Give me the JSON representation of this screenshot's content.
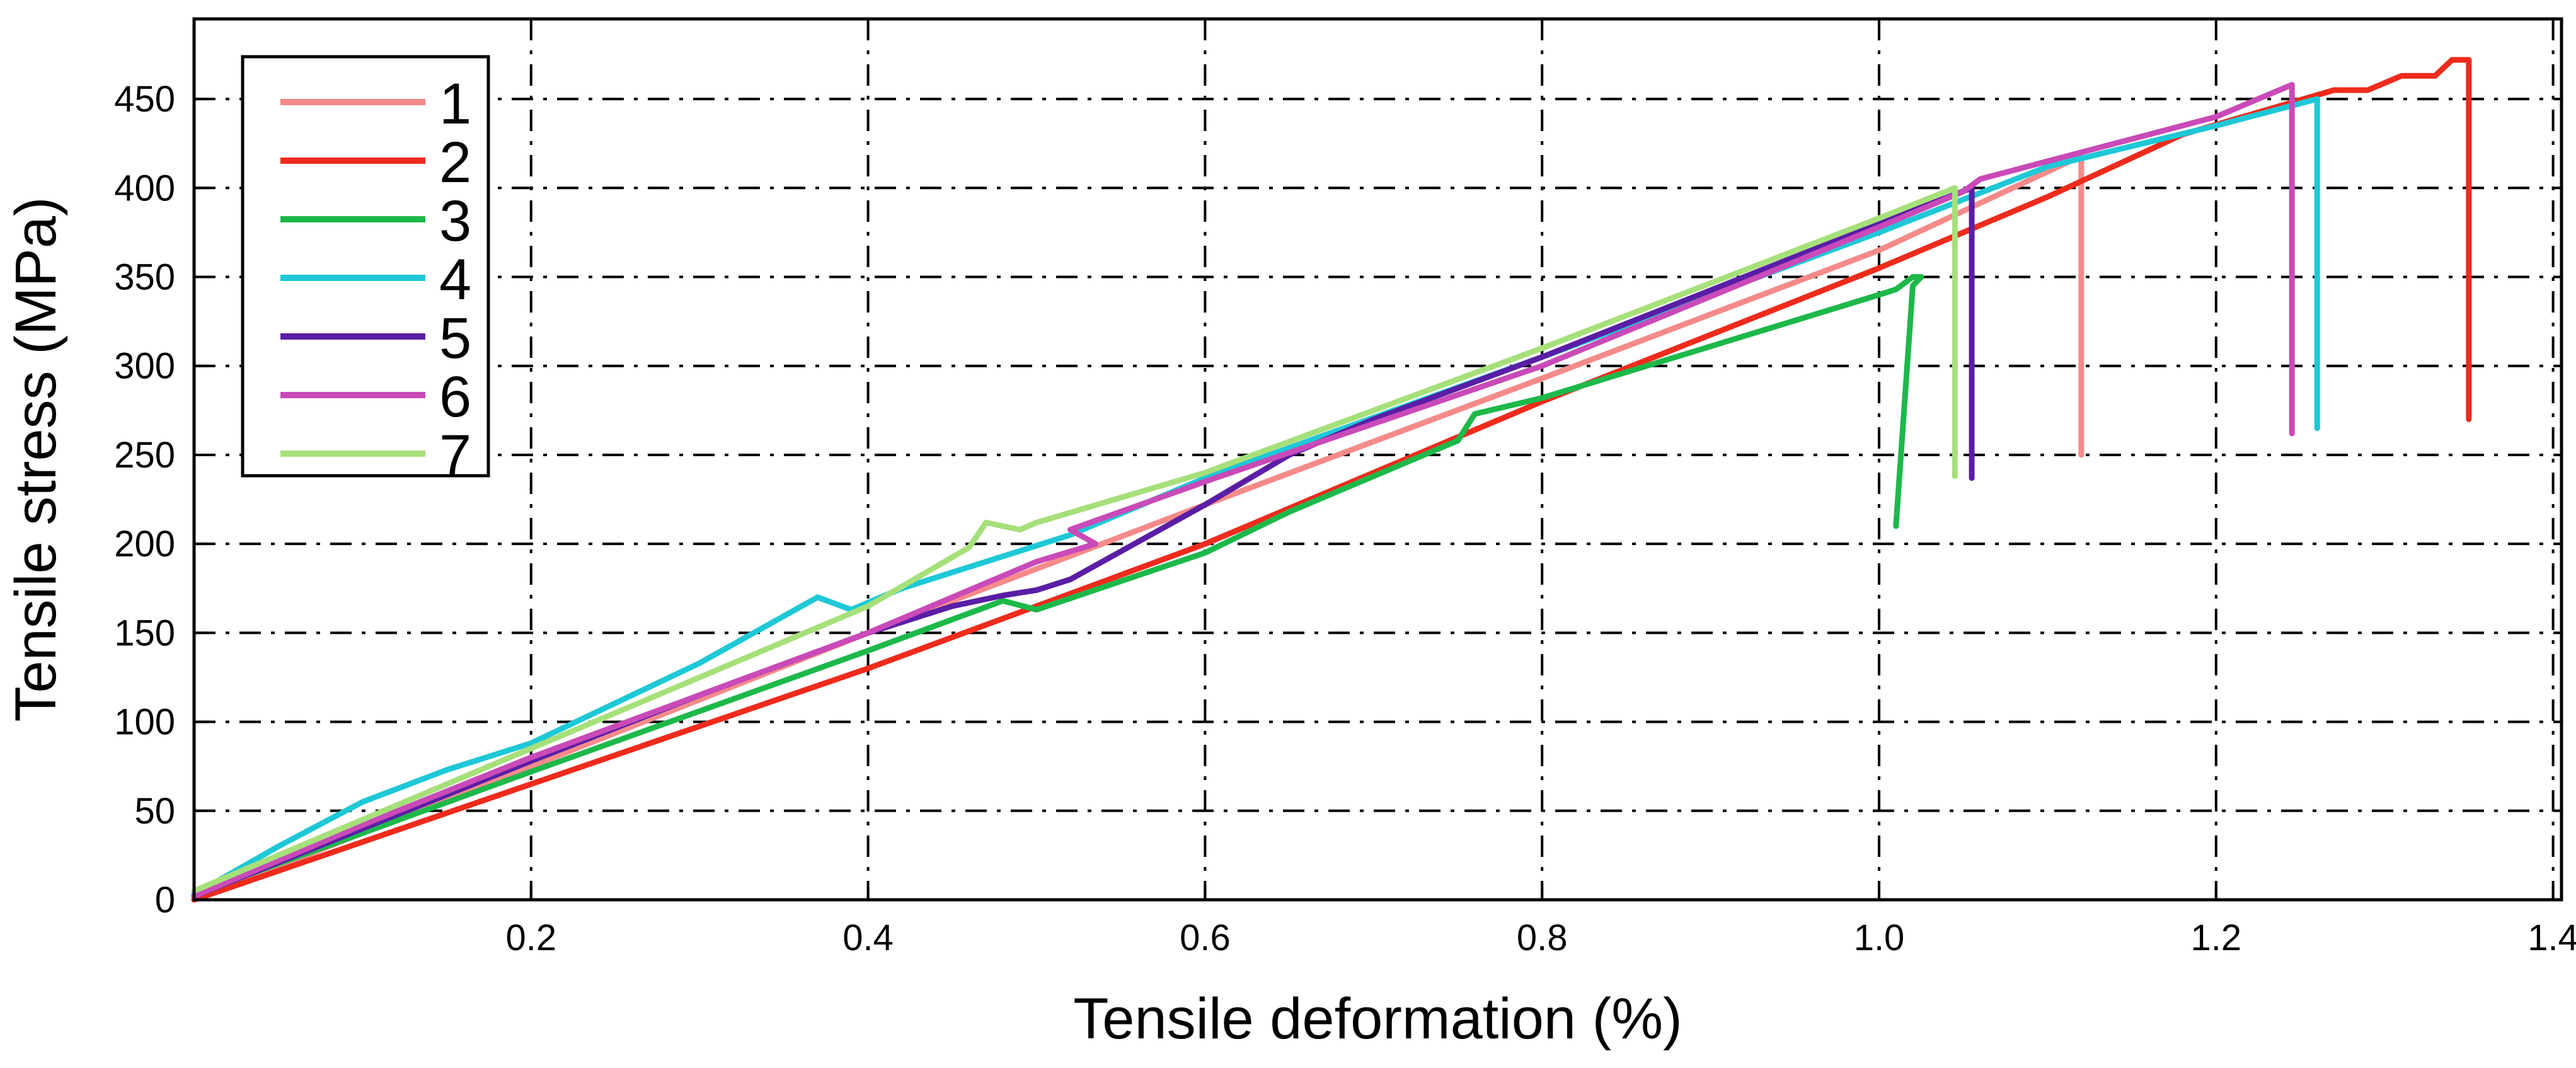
{
  "chart_data": {
    "type": "line",
    "title": "",
    "xlabel": "Tensile deformation (%)",
    "ylabel": "Tensile stress (MPa)",
    "xlim": [
      0.0,
      1.405
    ],
    "ylim": [
      0,
      495
    ],
    "x_ticks": [
      0.2,
      0.4,
      0.6,
      0.8,
      1.0,
      1.2,
      1.4
    ],
    "x_tick_labels": [
      "0.2",
      "0.4",
      "0.6",
      "0.8",
      "1.0",
      "1.2",
      "1.4"
    ],
    "y_ticks": [
      0,
      50,
      100,
      150,
      200,
      250,
      300,
      350,
      400,
      450
    ],
    "y_tick_labels": [
      "0",
      "50",
      "100",
      "150",
      "200",
      "250",
      "300",
      "350",
      "400",
      "450"
    ],
    "grid": true,
    "grid_style": "dash-dot",
    "legend_position": "top-left",
    "series": [
      {
        "name": "1",
        "color": "#f58a8a",
        "points": [
          [
            0.0,
            0
          ],
          [
            0.2,
            75
          ],
          [
            0.4,
            150
          ],
          [
            0.6,
            222
          ],
          [
            0.8,
            293
          ],
          [
            1.0,
            365
          ],
          [
            1.12,
            418
          ],
          [
            1.12,
            250
          ]
        ]
      },
      {
        "name": "2",
        "color": "#ee2b1c",
        "points": [
          [
            0.0,
            0
          ],
          [
            0.2,
            65
          ],
          [
            0.4,
            130
          ],
          [
            0.6,
            200
          ],
          [
            0.8,
            280
          ],
          [
            1.0,
            355
          ],
          [
            1.1,
            395
          ],
          [
            1.18,
            430
          ],
          [
            1.27,
            455
          ],
          [
            1.29,
            455
          ],
          [
            1.31,
            463
          ],
          [
            1.33,
            463
          ],
          [
            1.34,
            472
          ],
          [
            1.35,
            472
          ],
          [
            1.35,
            270
          ]
        ]
      },
      {
        "name": "3",
        "color": "#1db84a",
        "points": [
          [
            0.0,
            3
          ],
          [
            0.2,
            72
          ],
          [
            0.4,
            140
          ],
          [
            0.48,
            168
          ],
          [
            0.5,
            163
          ],
          [
            0.6,
            195
          ],
          [
            0.65,
            218
          ],
          [
            0.75,
            258
          ],
          [
            0.76,
            273
          ],
          [
            0.8,
            282
          ],
          [
            1.0,
            340
          ],
          [
            1.01,
            343
          ],
          [
            1.02,
            350
          ],
          [
            1.025,
            350
          ],
          [
            1.02,
            345
          ],
          [
            1.01,
            210
          ]
        ]
      },
      {
        "name": "4",
        "color": "#1ec8d6",
        "points": [
          [
            0.0,
            3
          ],
          [
            0.05,
            30
          ],
          [
            0.1,
            55
          ],
          [
            0.15,
            73
          ],
          [
            0.2,
            88
          ],
          [
            0.26,
            115
          ],
          [
            0.3,
            133
          ],
          [
            0.37,
            170
          ],
          [
            0.39,
            163
          ],
          [
            0.42,
            175
          ],
          [
            0.52,
            205
          ],
          [
            0.6,
            237
          ],
          [
            0.8,
            305
          ],
          [
            1.0,
            375
          ],
          [
            1.1,
            412
          ],
          [
            1.2,
            435
          ],
          [
            1.26,
            450
          ],
          [
            1.26,
            265
          ]
        ]
      },
      {
        "name": "5",
        "color": "#5a1ea6",
        "points": [
          [
            0.0,
            2
          ],
          [
            0.1,
            40
          ],
          [
            0.2,
            78
          ],
          [
            0.3,
            115
          ],
          [
            0.4,
            150
          ],
          [
            0.45,
            165
          ],
          [
            0.48,
            171
          ],
          [
            0.5,
            174
          ],
          [
            0.52,
            180
          ],
          [
            0.6,
            222
          ],
          [
            0.65,
            250
          ],
          [
            0.7,
            270
          ],
          [
            0.8,
            305
          ],
          [
            1.0,
            380
          ],
          [
            1.055,
            400
          ],
          [
            1.055,
            237
          ]
        ]
      },
      {
        "name": "6",
        "color": "#c94ab8",
        "points": [
          [
            0.0,
            2
          ],
          [
            0.1,
            42
          ],
          [
            0.2,
            80
          ],
          [
            0.3,
            115
          ],
          [
            0.4,
            150
          ],
          [
            0.5,
            190
          ],
          [
            0.535,
            200
          ],
          [
            0.52,
            208
          ],
          [
            0.6,
            235
          ],
          [
            0.8,
            300
          ],
          [
            1.0,
            378
          ],
          [
            1.05,
            398
          ],
          [
            1.06,
            405
          ],
          [
            1.1,
            415
          ],
          [
            1.2,
            440
          ],
          [
            1.245,
            458
          ],
          [
            1.245,
            262
          ]
        ]
      },
      {
        "name": "7",
        "color": "#a6e07a",
        "points": [
          [
            0.0,
            5
          ],
          [
            0.1,
            45
          ],
          [
            0.2,
            85
          ],
          [
            0.3,
            125
          ],
          [
            0.4,
            165
          ],
          [
            0.46,
            198
          ],
          [
            0.47,
            212
          ],
          [
            0.49,
            208
          ],
          [
            0.5,
            212
          ],
          [
            0.6,
            240
          ],
          [
            0.8,
            310
          ],
          [
            1.0,
            383
          ],
          [
            1.045,
            400
          ],
          [
            1.045,
            238
          ]
        ]
      }
    ]
  }
}
